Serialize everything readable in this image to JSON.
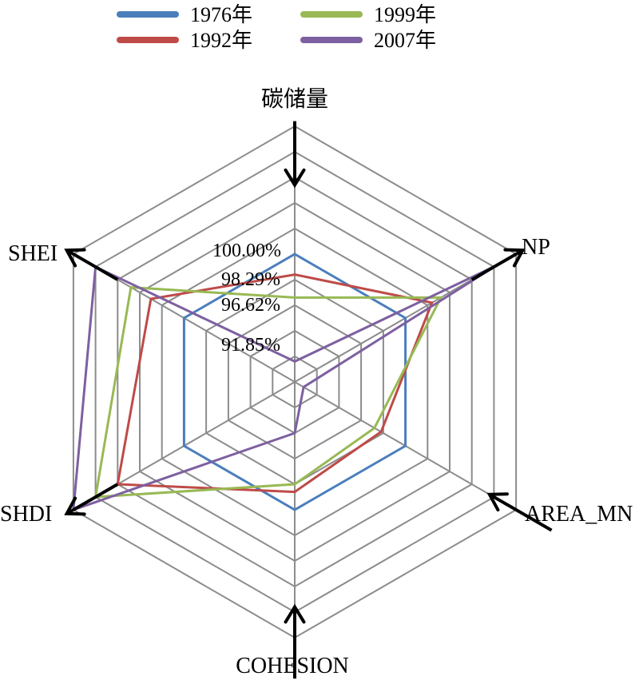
{
  "chart_data": {
    "type": "radar",
    "axes": [
      "碳储量",
      "NP",
      "AREA_MN",
      "COHESION",
      "SHDI",
      "SHEI"
    ],
    "axis_arrows": [
      "in",
      "out",
      "in",
      "in",
      "out",
      "out"
    ],
    "grid_levels": 10,
    "value_labels": [
      "100.00%",
      "98.29%",
      "96.62%",
      "91.85%"
    ],
    "series": [
      {
        "name": "1976年",
        "color": "#4a7ebb",
        "values": [
          0.5,
          0.5,
          0.5,
          0.5,
          0.5,
          0.5
        ]
      },
      {
        "name": "1992年",
        "color": "#be4b48",
        "values": [
          0.42,
          0.62,
          0.39,
          0.43,
          0.8,
          0.65
        ]
      },
      {
        "name": "1999年",
        "color": "#98b954",
        "values": [
          0.33,
          0.66,
          0.36,
          0.4,
          0.9,
          0.74
        ]
      },
      {
        "name": "2007年",
        "color": "#7d60a0",
        "values": [
          0.08,
          0.91,
          0.04,
          0.2,
          1.0,
          0.9
        ]
      }
    ],
    "legend_position": "top"
  }
}
